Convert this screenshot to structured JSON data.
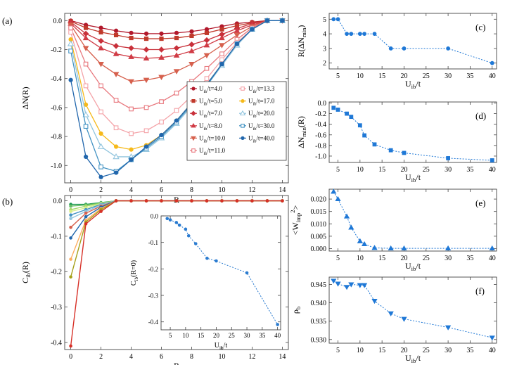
{
  "chart_data": [
    {
      "id": "a",
      "type": "line",
      "panel_label": "(a)",
      "xlabel": "R",
      "ylabel": "ΔN(R)",
      "xlim": [
        -0.4,
        14.4
      ],
      "ylim": [
        -1.12,
        0.05
      ],
      "xticks": [
        0,
        2,
        4,
        6,
        8,
        10,
        12,
        14
      ],
      "yticks": [
        0.0,
        -0.2,
        -0.4,
        -0.6,
        -0.8,
        -1.0
      ],
      "legend_position": "center-right",
      "x": [
        0,
        1,
        2,
        3,
        4,
        5,
        6,
        7,
        8,
        9,
        10,
        11,
        12,
        13,
        14
      ],
      "series": [
        {
          "name": "U_ib/t=4.0",
          "color": "#b2182b",
          "marker": "circle",
          "values": [
            0,
            -0.03,
            -0.05,
            -0.07,
            -0.085,
            -0.09,
            -0.09,
            -0.085,
            -0.075,
            -0.06,
            -0.04,
            -0.02,
            -0.01,
            0,
            0
          ]
        },
        {
          "name": "U_ib/t=5.0",
          "color": "#c0392b",
          "marker": "square",
          "values": [
            -0.005,
            -0.05,
            -0.08,
            -0.1,
            -0.12,
            -0.125,
            -0.125,
            -0.12,
            -0.105,
            -0.085,
            -0.06,
            -0.035,
            -0.015,
            0,
            0
          ]
        },
        {
          "name": "U_ib/t=7.0",
          "color": "#c8303a",
          "marker": "diamond",
          "values": [
            -0.01,
            -0.09,
            -0.14,
            -0.175,
            -0.19,
            -0.2,
            -0.2,
            -0.19,
            -0.165,
            -0.135,
            -0.095,
            -0.055,
            -0.02,
            0,
            0
          ]
        },
        {
          "name": "U_ib/t=8.0",
          "color": "#d03b45",
          "marker": "triangle-up",
          "values": [
            -0.02,
            -0.12,
            -0.19,
            -0.23,
            -0.25,
            -0.26,
            -0.255,
            -0.24,
            -0.21,
            -0.17,
            -0.12,
            -0.07,
            -0.03,
            0,
            0
          ]
        },
        {
          "name": "U_ib/t=10.0",
          "color": "#d6604d",
          "marker": "triangle-down",
          "values": [
            -0.03,
            -0.19,
            -0.3,
            -0.37,
            -0.42,
            -0.41,
            -0.39,
            -0.35,
            -0.3,
            -0.24,
            -0.17,
            -0.1,
            -0.04,
            0,
            0
          ]
        },
        {
          "name": "U_ib/t=11.0",
          "color": "#e8787e",
          "marker": "square-open",
          "values": [
            -0.05,
            -0.3,
            -0.45,
            -0.55,
            -0.61,
            -0.6,
            -0.56,
            -0.5,
            -0.42,
            -0.33,
            -0.23,
            -0.13,
            -0.05,
            0,
            0
          ]
        },
        {
          "name": "U_ib/t=13.3",
          "color": "#f4a3a8",
          "marker": "square-open",
          "values": [
            -0.08,
            -0.45,
            -0.63,
            -0.74,
            -0.78,
            -0.76,
            -0.7,
            -0.62,
            -0.52,
            -0.4,
            -0.27,
            -0.15,
            -0.06,
            0,
            0
          ]
        },
        {
          "name": "U_ib/t=17.0",
          "color": "#f6b91a",
          "marker": "circle",
          "values": [
            -0.13,
            -0.58,
            -0.78,
            -0.87,
            -0.89,
            -0.86,
            -0.79,
            -0.69,
            -0.57,
            -0.44,
            -0.3,
            -0.16,
            -0.06,
            0,
            0
          ]
        },
        {
          "name": "U_ib/t=20.0",
          "color": "#92c5de",
          "marker": "triangle-open",
          "values": [
            -0.16,
            -0.65,
            -0.87,
            -0.94,
            -0.94,
            -0.89,
            -0.81,
            -0.71,
            -0.59,
            -0.45,
            -0.31,
            -0.17,
            -0.06,
            0,
            0
          ]
        },
        {
          "name": "U_ib/t=30.0",
          "color": "#4393c3",
          "marker": "square-open",
          "values": [
            -0.21,
            -0.73,
            -1.01,
            -1.04,
            -0.96,
            -0.88,
            -0.8,
            -0.7,
            -0.58,
            -0.45,
            -0.3,
            -0.16,
            -0.06,
            0,
            0
          ]
        },
        {
          "name": "U_ib/t=40.0",
          "color": "#2166ac",
          "marker": "circle",
          "values": [
            -0.41,
            -0.94,
            -1.08,
            -1.05,
            -0.96,
            -0.87,
            -0.79,
            -0.69,
            -0.57,
            -0.44,
            -0.3,
            -0.16,
            -0.06,
            0,
            0
          ]
        }
      ],
      "legend_entries": [
        "U_ib/t=4.0",
        "U_ib/t=5.0",
        "U_ib/t=7.0",
        "U_ib/t=8.0",
        "U_ib/t=10.0",
        "U_ib/t=11.0",
        "U_ib/t=13.3",
        "U_ib/t=17.0",
        "U_ib/t=20.0",
        "U_ib/t=30.0",
        "U_ib/t=40.0"
      ]
    },
    {
      "id": "b",
      "type": "line",
      "panel_label": "(b)",
      "xlabel": "R",
      "ylabel": "C_ib(R)",
      "xlim": [
        -0.4,
        14.4
      ],
      "ylim": [
        -0.42,
        0.015
      ],
      "xticks": [
        0,
        2,
        4,
        6,
        8,
        10,
        12,
        14
      ],
      "yticks": [
        0.0,
        -0.1,
        -0.2,
        -0.3,
        -0.4
      ],
      "x": [
        0,
        1,
        2,
        3,
        4,
        5,
        6,
        7,
        8,
        9,
        10,
        11,
        12,
        13,
        14
      ],
      "series": [
        {
          "color": "#1a9850",
          "values": [
            -0.01,
            -0.01,
            -0.005,
            0,
            0,
            0,
            0,
            0,
            0,
            0,
            0,
            0,
            0,
            0,
            0
          ]
        },
        {
          "color": "#66bd63",
          "values": [
            -0.015,
            -0.012,
            -0.006,
            0,
            0,
            0,
            0,
            0,
            0,
            0,
            0,
            0,
            0,
            0,
            0
          ]
        },
        {
          "color": "#a6d96a",
          "values": [
            -0.025,
            -0.015,
            -0.007,
            0,
            0,
            0,
            0,
            0,
            0,
            0,
            0,
            0,
            0,
            0,
            0
          ]
        },
        {
          "color": "#d9ef8b",
          "values": [
            -0.03,
            -0.02,
            -0.008,
            0,
            0,
            0,
            0,
            0,
            0,
            0,
            0,
            0,
            0,
            0,
            0
          ]
        },
        {
          "color": "#4393c3",
          "values": [
            -0.04,
            -0.025,
            -0.01,
            0,
            0,
            0,
            0,
            0,
            0,
            0,
            0,
            0,
            0,
            0,
            0
          ]
        },
        {
          "color": "#92c5de",
          "values": [
            -0.05,
            -0.03,
            -0.012,
            0,
            0,
            0,
            0,
            0,
            0,
            0,
            0,
            0,
            0,
            0,
            0
          ]
        },
        {
          "color": "#d6604d",
          "values": [
            -0.075,
            -0.035,
            -0.015,
            0,
            0,
            0,
            0,
            0,
            0,
            0,
            0,
            0,
            0,
            0,
            0
          ]
        },
        {
          "color": "#2166ac",
          "values": [
            -0.105,
            -0.045,
            -0.018,
            0,
            0,
            0,
            0,
            0,
            0,
            0,
            0,
            0,
            0,
            0,
            0
          ]
        },
        {
          "color": "#fdae61",
          "values": [
            -0.165,
            -0.055,
            -0.022,
            0,
            0,
            0,
            0,
            0,
            0,
            0,
            0,
            0,
            0,
            0,
            0
          ]
        },
        {
          "color": "#a6a01a",
          "values": [
            -0.215,
            -0.06,
            -0.025,
            0,
            0,
            0,
            0,
            0,
            0,
            0,
            0,
            0,
            0,
            0,
            0
          ]
        },
        {
          "color": "#d73027",
          "values": [
            -0.41,
            -0.065,
            -0.03,
            0,
            0,
            0,
            0,
            0,
            0,
            0,
            0,
            0,
            0,
            0,
            0
          ]
        }
      ],
      "inset": {
        "type": "scatter",
        "xlabel": "U_ib/t",
        "ylabel": "C_ib(R=0)",
        "xlim": [
          2,
          41
        ],
        "ylim": [
          -0.43,
          0.0
        ],
        "xticks": [
          5,
          10,
          15,
          20,
          25,
          30,
          35,
          40
        ],
        "yticks": [
          0.0,
          -0.1,
          -0.2,
          -0.3,
          -0.4
        ],
        "x": [
          4,
          5,
          7,
          8,
          10,
          11,
          13.3,
          17,
          20,
          30,
          40
        ],
        "y": [
          -0.01,
          -0.015,
          -0.025,
          -0.035,
          -0.05,
          -0.075,
          -0.105,
          -0.16,
          -0.17,
          -0.215,
          -0.41
        ]
      }
    },
    {
      "id": "c",
      "type": "scatter",
      "panel_label": "(c)",
      "xlabel": "U_ib/t",
      "ylabel": "R(ΔN_min)",
      "xlim": [
        3,
        41
      ],
      "ylim": [
        1.6,
        5.4
      ],
      "xticks": [
        5,
        10,
        15,
        20,
        25,
        30,
        35,
        40
      ],
      "yticks": [
        2,
        3,
        4,
        5
      ],
      "x": [
        4,
        5,
        7,
        8,
        10,
        11,
        13.3,
        17,
        20,
        30,
        40
      ],
      "y": [
        5,
        5,
        4,
        4,
        4,
        4,
        4,
        3,
        3,
        3,
        2
      ]
    },
    {
      "id": "d",
      "type": "scatter",
      "panel_label": "(d)",
      "xlabel": "U_ib/t",
      "ylabel": "ΔN_min(R)",
      "xlim": [
        3,
        41
      ],
      "ylim": [
        -1.12,
        0.02
      ],
      "xticks": [
        5,
        10,
        15,
        20,
        25,
        30,
        35,
        40
      ],
      "yticks": [
        0.0,
        -0.2,
        -0.4,
        -0.6,
        -0.8,
        -1.0
      ],
      "x": [
        4,
        5,
        7,
        8,
        10,
        11,
        13.3,
        17,
        20,
        30,
        40
      ],
      "y": [
        -0.09,
        -0.125,
        -0.2,
        -0.26,
        -0.42,
        -0.61,
        -0.78,
        -0.89,
        -0.94,
        -1.04,
        -1.08
      ]
    },
    {
      "id": "e",
      "type": "scatter",
      "panel_label": "(e)",
      "xlabel": "U_ib/t",
      "ylabel": "<W_imp^2>",
      "xlim": [
        3,
        41
      ],
      "ylim": [
        -0.001,
        0.024
      ],
      "xticks": [
        5,
        10,
        15,
        20,
        25,
        30,
        35,
        40
      ],
      "yticks": [
        0.0,
        0.005,
        0.01,
        0.015,
        0.02
      ],
      "x": [
        4,
        5,
        7,
        8,
        10,
        11,
        13.3,
        17,
        20,
        30,
        40
      ],
      "y": [
        0.023,
        0.02,
        0.013,
        0.0085,
        0.003,
        0.0018,
        0.0003,
        0.0001,
        0.0001,
        0.0001,
        0.0001
      ]
    },
    {
      "id": "f",
      "type": "scatter",
      "panel_label": "(f)",
      "xlabel": "U_ib/t",
      "ylabel": "ρ_b",
      "xlim": [
        3,
        41
      ],
      "ylim": [
        0.929,
        0.947
      ],
      "xticks": [
        5,
        10,
        15,
        20,
        25,
        30,
        35,
        40
      ],
      "yticks": [
        0.93,
        0.935,
        0.94,
        0.945
      ],
      "x": [
        4,
        5,
        7,
        8,
        10,
        11,
        13.3,
        17,
        20,
        30,
        40
      ],
      "y": [
        0.946,
        0.9452,
        0.9443,
        0.945,
        0.9448,
        0.9448,
        0.9405,
        0.9371,
        0.9356,
        0.9333,
        0.9305
      ]
    }
  ]
}
